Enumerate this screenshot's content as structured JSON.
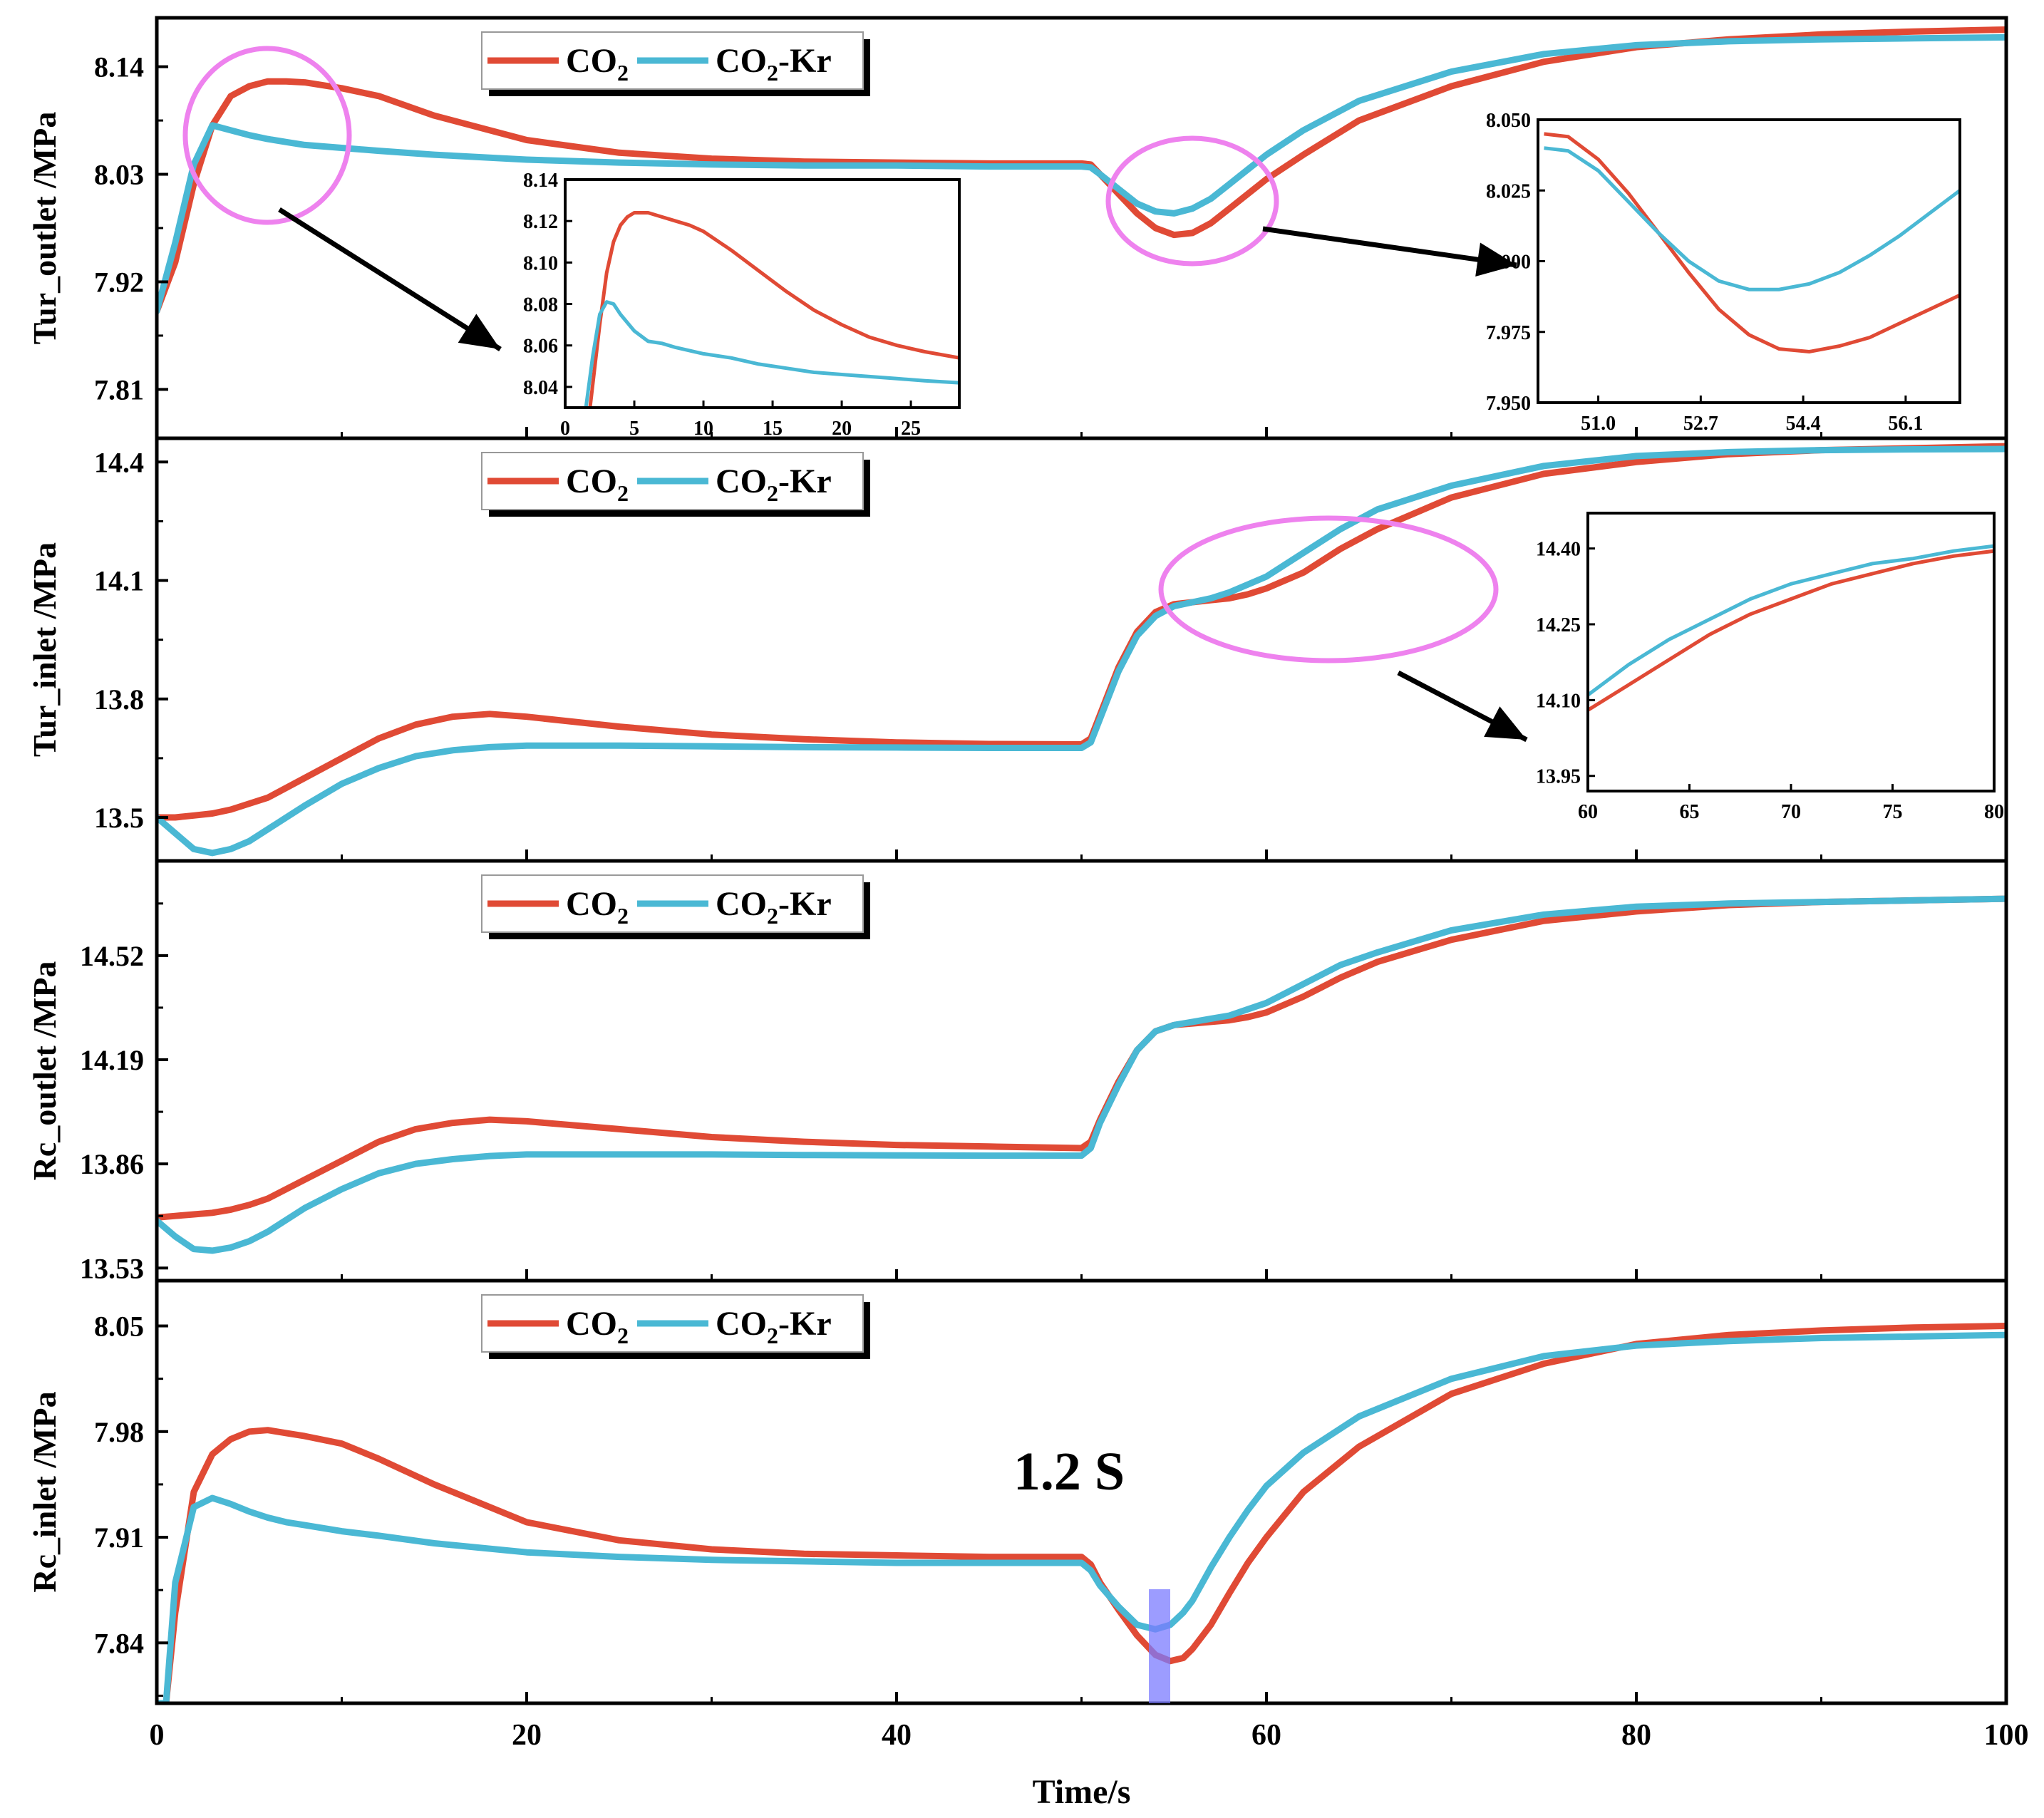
{
  "chart_data": {
    "type": "line",
    "title": "",
    "xlabel": "Time/s",
    "xlim": [
      0,
      100
    ],
    "xticks": [
      "0",
      "20",
      "40",
      "60",
      "80",
      "100"
    ],
    "colors": {
      "CO2": "#e04a35",
      "CO2-Kr": "#4ab8d4",
      "highlight": "#ee82ee",
      "marker": "#7b7bff"
    },
    "legend": {
      "series_a": "CO",
      "series_a_sub": "2",
      "series_b": "CO",
      "series_b_sub": "2",
      "series_b_suffix": "-Kr"
    },
    "annotation": "1.2 S",
    "panels": [
      {
        "ylabel": "Tur_outlet /MPa",
        "ylim": [
          7.76,
          8.19
        ],
        "yticks": [
          "7.81",
          "7.92",
          "8.03",
          "8.14"
        ],
        "series": [
          {
            "name": "CO2",
            "x": [
              0,
              1,
              2,
              3,
              4,
              5,
              6,
              7,
              8,
              10,
              12,
              15,
              20,
              25,
              30,
              35,
              40,
              45,
              50,
              50.5,
              51,
              52,
              53,
              54,
              55,
              56,
              57,
              58,
              59,
              60,
              62,
              65,
              70,
              75,
              80,
              85,
              90,
              95,
              100
            ],
            "values": [
              7.89,
              7.94,
              8.02,
              8.08,
              8.11,
              8.12,
              8.125,
              8.125,
              8.124,
              8.118,
              8.11,
              8.09,
              8.065,
              8.052,
              8.046,
              8.043,
              8.042,
              8.041,
              8.041,
              8.04,
              8.03,
              8.01,
              7.99,
              7.975,
              7.968,
              7.97,
              7.98,
              7.995,
              8.01,
              8.025,
              8.05,
              8.085,
              8.12,
              8.145,
              8.16,
              8.168,
              8.173,
              8.176,
              8.178
            ]
          },
          {
            "name": "CO2-Kr",
            "x": [
              0,
              1,
              2,
              3,
              4,
              5,
              6,
              7,
              8,
              10,
              12,
              15,
              20,
              25,
              30,
              35,
              40,
              45,
              50,
              50.5,
              51,
              52,
              53,
              54,
              55,
              56,
              57,
              58,
              59,
              60,
              62,
              65,
              70,
              75,
              80,
              85,
              90,
              95,
              100
            ],
            "values": [
              7.89,
              7.96,
              8.04,
              8.08,
              8.075,
              8.07,
              8.066,
              8.063,
              8.06,
              8.057,
              8.054,
              8.05,
              8.045,
              8.042,
              8.04,
              8.039,
              8.039,
              8.038,
              8.038,
              8.037,
              8.03,
              8.015,
              8.0,
              7.992,
              7.99,
              7.995,
              8.005,
              8.02,
              8.035,
              8.05,
              8.075,
              8.105,
              8.135,
              8.153,
              8.162,
              8.166,
              8.168,
              8.169,
              8.17
            ]
          }
        ],
        "inset": {
          "xlim": [
            0,
            28.5
          ],
          "ylim": [
            8.03,
            8.14
          ],
          "xticks": [
            "0",
            "5",
            "10",
            "15",
            "20",
            "25"
          ],
          "yticks": [
            "8.04",
            "8.06",
            "8.08",
            "8.10",
            "8.12",
            "8.14"
          ],
          "series": [
            {
              "name": "CO2",
              "x": [
                1.8,
                2.5,
                3,
                3.5,
                4,
                4.5,
                5,
                6,
                7,
                8,
                9,
                10,
                12,
                14,
                16,
                18,
                20,
                22,
                24,
                26,
                28.5
              ],
              "values": [
                8.03,
                8.07,
                8.095,
                8.11,
                8.118,
                8.122,
                8.124,
                8.124,
                8.122,
                8.12,
                8.118,
                8.115,
                8.106,
                8.096,
                8.086,
                8.077,
                8.07,
                8.064,
                8.06,
                8.057,
                8.054
              ]
            },
            {
              "name": "CO2-Kr",
              "x": [
                1.5,
                2,
                2.5,
                3,
                3.5,
                4,
                5,
                6,
                7,
                8,
                10,
                12,
                14,
                16,
                18,
                20,
                22,
                24,
                26,
                28.5
              ],
              "values": [
                8.03,
                8.055,
                8.075,
                8.081,
                8.08,
                8.075,
                8.067,
                8.062,
                8.061,
                8.059,
                8.056,
                8.054,
                8.051,
                8.049,
                8.047,
                8.046,
                8.045,
                8.044,
                8.043,
                8.042
              ]
            }
          ]
        }
      },
      {
        "ylabel": "Tur_inlet /MPa",
        "ylim": [
          13.39,
          14.46
        ],
        "yticks": [
          "13.5",
          "13.8",
          "14.1",
          "14.4"
        ],
        "series": [
          {
            "name": "CO2",
            "x": [
              0,
              1,
              2,
              3,
              4,
              5,
              6,
              8,
              10,
              12,
              14,
              16,
              18,
              20,
              25,
              30,
              35,
              40,
              45,
              50,
              50.5,
              51,
              52,
              53,
              54,
              55,
              56,
              57,
              58,
              59,
              60,
              62,
              64,
              66,
              70,
              75,
              80,
              85,
              90,
              95,
              100
            ],
            "values": [
              13.5,
              13.5,
              13.505,
              13.51,
              13.52,
              13.535,
              13.55,
              13.6,
              13.65,
              13.7,
              13.735,
              13.755,
              13.762,
              13.755,
              13.73,
              13.71,
              13.698,
              13.69,
              13.686,
              13.685,
              13.7,
              13.76,
              13.88,
              13.97,
              14.02,
              14.04,
              14.045,
              14.05,
              14.055,
              14.065,
              14.08,
              14.12,
              14.18,
              14.23,
              14.31,
              14.37,
              14.4,
              14.42,
              14.43,
              14.435,
              14.44
            ]
          },
          {
            "name": "CO2-Kr",
            "x": [
              0,
              1,
              2,
              3,
              4,
              5,
              6,
              8,
              10,
              12,
              14,
              16,
              18,
              20,
              25,
              30,
              35,
              40,
              45,
              50,
              50.5,
              51,
              52,
              53,
              54,
              55,
              56,
              57,
              58,
              59,
              60,
              62,
              64,
              66,
              70,
              75,
              80,
              85,
              90,
              95,
              100
            ],
            "values": [
              13.5,
              13.46,
              13.42,
              13.41,
              13.42,
              13.44,
              13.47,
              13.53,
              13.585,
              13.625,
              13.655,
              13.67,
              13.678,
              13.682,
              13.682,
              13.68,
              13.678,
              13.677,
              13.676,
              13.676,
              13.69,
              13.75,
              13.87,
              13.96,
              14.01,
              14.035,
              14.045,
              14.055,
              14.07,
              14.09,
              14.11,
              14.17,
              14.23,
              14.28,
              14.34,
              14.39,
              14.415,
              14.425,
              14.43,
              14.432,
              14.433
            ]
          }
        ],
        "inset": {
          "xlim": [
            60,
            80
          ],
          "ylim": [
            13.92,
            14.47
          ],
          "xticks": [
            "60",
            "65",
            "70",
            "75",
            "80"
          ],
          "yticks": [
            "13.95",
            "14.10",
            "14.25",
            "14.40"
          ],
          "series": [
            {
              "name": "CO2",
              "x": [
                60,
                62,
                64,
                66,
                68,
                70,
                72,
                74,
                76,
                78,
                80
              ],
              "values": [
                14.08,
                14.13,
                14.18,
                14.23,
                14.27,
                14.3,
                14.33,
                14.35,
                14.37,
                14.385,
                14.395
              ]
            },
            {
              "name": "CO2-Kr",
              "x": [
                60,
                62,
                64,
                66,
                68,
                70,
                72,
                74,
                76,
                78,
                80
              ],
              "values": [
                14.11,
                14.17,
                14.22,
                14.26,
                14.3,
                14.33,
                14.35,
                14.37,
                14.38,
                14.395,
                14.405
              ]
            }
          ]
        }
      },
      {
        "ylabel": "Rc_outlet /MPa",
        "ylim": [
          13.49,
          14.82
        ],
        "yticks": [
          "13.53",
          "13.86",
          "14.19",
          "14.52"
        ],
        "series": [
          {
            "name": "CO2",
            "x": [
              0,
              1,
              2,
              3,
              4,
              5,
              6,
              8,
              10,
              12,
              14,
              16,
              18,
              20,
              25,
              30,
              35,
              40,
              45,
              50,
              50.5,
              51,
              52,
              53,
              54,
              55,
              56,
              57,
              58,
              59,
              60,
              62,
              64,
              66,
              70,
              75,
              80,
              85,
              90,
              95,
              100
            ],
            "values": [
              13.69,
              13.695,
              13.7,
              13.705,
              13.715,
              13.73,
              13.75,
              13.81,
              13.87,
              13.93,
              13.97,
              13.99,
              14.0,
              13.995,
              13.97,
              13.945,
              13.93,
              13.92,
              13.915,
              13.91,
              13.93,
              14.0,
              14.12,
              14.22,
              14.28,
              14.3,
              14.305,
              14.31,
              14.315,
              14.325,
              14.34,
              14.39,
              14.45,
              14.5,
              14.57,
              14.63,
              14.66,
              14.68,
              14.69,
              14.695,
              14.7
            ]
          },
          {
            "name": "CO2-Kr",
            "x": [
              0,
              1,
              2,
              3,
              4,
              5,
              6,
              8,
              10,
              12,
              14,
              16,
              18,
              20,
              25,
              30,
              35,
              40,
              45,
              50,
              50.5,
              51,
              52,
              53,
              54,
              55,
              56,
              57,
              58,
              59,
              60,
              62,
              64,
              66,
              70,
              75,
              80,
              85,
              90,
              95,
              100
            ],
            "values": [
              13.68,
              13.63,
              13.59,
              13.585,
              13.595,
              13.615,
              13.645,
              13.72,
              13.78,
              13.83,
              13.86,
              13.875,
              13.885,
              13.89,
              13.89,
              13.89,
              13.888,
              13.887,
              13.886,
              13.886,
              13.91,
              13.99,
              14.11,
              14.22,
              14.28,
              14.3,
              14.31,
              14.32,
              14.33,
              14.35,
              14.37,
              14.43,
              14.49,
              14.53,
              14.6,
              14.65,
              14.675,
              14.685,
              14.69,
              14.695,
              14.7
            ]
          }
        ]
      },
      {
        "ylabel": "Rc_inlet /MPa",
        "ylim": [
          7.8,
          8.08
        ],
        "yticks": [
          "7.84",
          "7.91",
          "7.98",
          "8.05"
        ],
        "series": [
          {
            "name": "CO2",
            "x": [
              0,
              0.5,
              1,
              2,
              3,
              4,
              5,
              6,
              7,
              8,
              10,
              12,
              15,
              20,
              25,
              30,
              35,
              40,
              45,
              50,
              50.5,
              51,
              52,
              53,
              54,
              54.8,
              55.5,
              56,
              57,
              58,
              59,
              60,
              62,
              65,
              70,
              75,
              80,
              85,
              90,
              95,
              100
            ],
            "values": [
              7.8,
              7.8,
              7.86,
              7.94,
              7.965,
              7.975,
              7.98,
              7.981,
              7.979,
              7.977,
              7.972,
              7.962,
              7.945,
              7.92,
              7.908,
              7.902,
              7.899,
              7.898,
              7.897,
              7.897,
              7.892,
              7.88,
              7.862,
              7.845,
              7.832,
              7.828,
              7.83,
              7.836,
              7.852,
              7.873,
              7.893,
              7.91,
              7.94,
              7.97,
              8.005,
              8.025,
              8.038,
              8.044,
              8.047,
              8.049,
              8.05
            ]
          },
          {
            "name": "CO2-Kr",
            "x": [
              0,
              0.5,
              1,
              2,
              3,
              4,
              5,
              6,
              7,
              8,
              10,
              12,
              15,
              20,
              25,
              30,
              35,
              40,
              45,
              50,
              50.5,
              51,
              52,
              53,
              54,
              54.8,
              55.5,
              56,
              57,
              58,
              59,
              60,
              62,
              65,
              70,
              75,
              80,
              85,
              90,
              95,
              100
            ],
            "values": [
              7.8,
              7.8,
              7.88,
              7.93,
              7.936,
              7.932,
              7.927,
              7.923,
              7.92,
              7.918,
              7.914,
              7.911,
              7.906,
              7.9,
              7.897,
              7.895,
              7.894,
              7.893,
              7.893,
              7.893,
              7.888,
              7.878,
              7.864,
              7.852,
              7.849,
              7.852,
              7.86,
              7.868,
              7.89,
              7.91,
              7.928,
              7.944,
              7.966,
              7.99,
              8.015,
              8.03,
              8.037,
              8.04,
              8.042,
              8.043,
              8.044
            ]
          }
        ]
      }
    ]
  }
}
